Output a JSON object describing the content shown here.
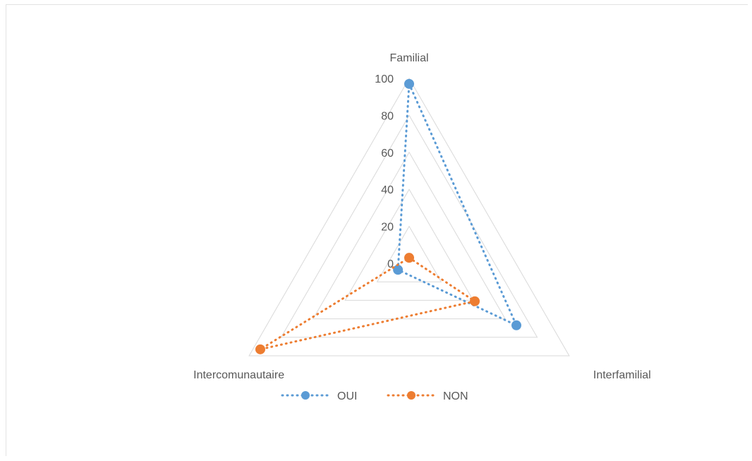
{
  "chart_data": {
    "type": "radar",
    "categories": [
      "Familial",
      "Interfamilial",
      "Intercomunautaire"
    ],
    "ticks": [
      "0",
      "20",
      "40",
      "60",
      "80",
      "100"
    ],
    "rlim": [
      0,
      100
    ],
    "grid": true,
    "legend_position": "bottom",
    "series": [
      {
        "name": "OUI",
        "values": [
          97,
          67,
          7
        ],
        "color": "#5B9BD5"
      },
      {
        "name": "NON",
        "values": [
          3,
          41,
          93
        ],
        "color": "#ED7D31"
      }
    ]
  }
}
